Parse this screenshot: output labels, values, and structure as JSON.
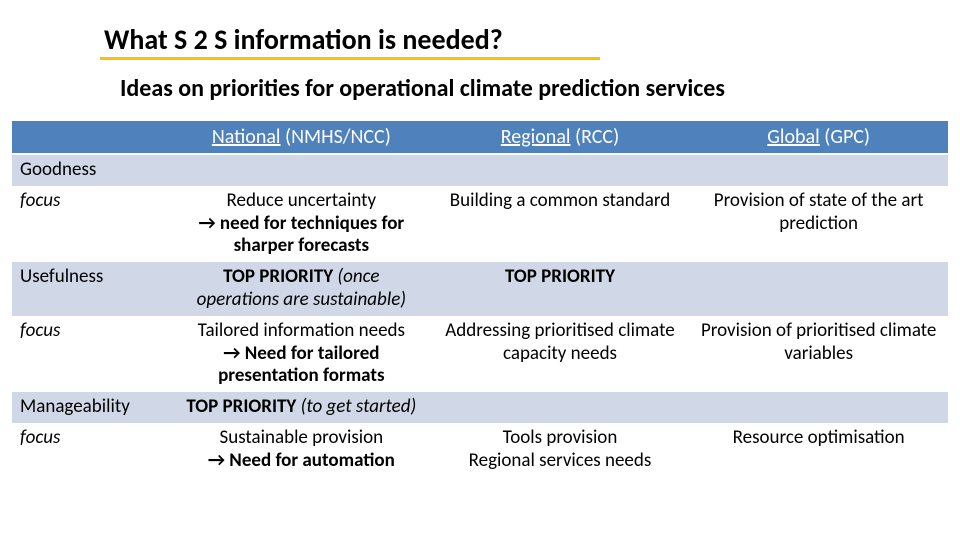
{
  "colors": {
    "header_bg": "#4f81bd",
    "header_fg": "#ffffff",
    "band_bg": "#d0d8e8",
    "accent_underline": "#ffc000",
    "text": "#000000",
    "page_bg": "#ffffff"
  },
  "typography": {
    "title_fontsize": 28,
    "subtitle_fontsize": 24,
    "cell_fontsize": 19,
    "header_fontsize": 20,
    "font_family": "Calibri"
  },
  "title": "What S 2 S information is needed?",
  "subtitle": "Ideas on priorities for operational climate prediction services",
  "columns": [
    {
      "underline": "National",
      "rest": " (NMHS/NCC)"
    },
    {
      "underline": "Regional",
      "rest": " (RCC)"
    },
    {
      "underline": "Global",
      "rest": " (GPC)"
    }
  ],
  "rows": [
    {
      "label": "Goodness",
      "band": true,
      "italic": false,
      "cells": [
        "",
        "",
        ""
      ]
    },
    {
      "label": "focus",
      "band": false,
      "italic": true,
      "cells": [
        {
          "l1": "Reduce uncertainty",
          "l2": "→ need for techniques for sharper forecasts",
          "l2_bold": true
        },
        "Building a common standard",
        "Provision of state of the art prediction"
      ]
    },
    {
      "label": "Usefulness",
      "band": true,
      "italic": false,
      "cells": [
        {
          "pre_bold": "TOP PRIORITY",
          "post_italic": " (once operations are sustainable)"
        },
        {
          "pre_bold": "TOP PRIORITY"
        },
        ""
      ]
    },
    {
      "label": "focus",
      "band": false,
      "italic": true,
      "cells": [
        {
          "l1": "Tailored information needs",
          "l2": "→ Need for tailored presentation formats",
          "l2_bold": true
        },
        "Addressing prioritised climate capacity needs",
        "Provision of prioritised climate variables"
      ]
    },
    {
      "label": "Manageability",
      "band": true,
      "italic": false,
      "cells": [
        {
          "pre_bold": "TOP PRIORITY",
          "post_italic": " (to get started)"
        },
        "",
        ""
      ]
    },
    {
      "label": "focus",
      "band": false,
      "italic": true,
      "cells": [
        {
          "l1": "Sustainable provision",
          "l2": "→ Need for automation",
          "l2_bold": true
        },
        {
          "l1": "Tools provision",
          "l2": "Regional services needs"
        },
        "Resource optimisation"
      ]
    }
  ]
}
